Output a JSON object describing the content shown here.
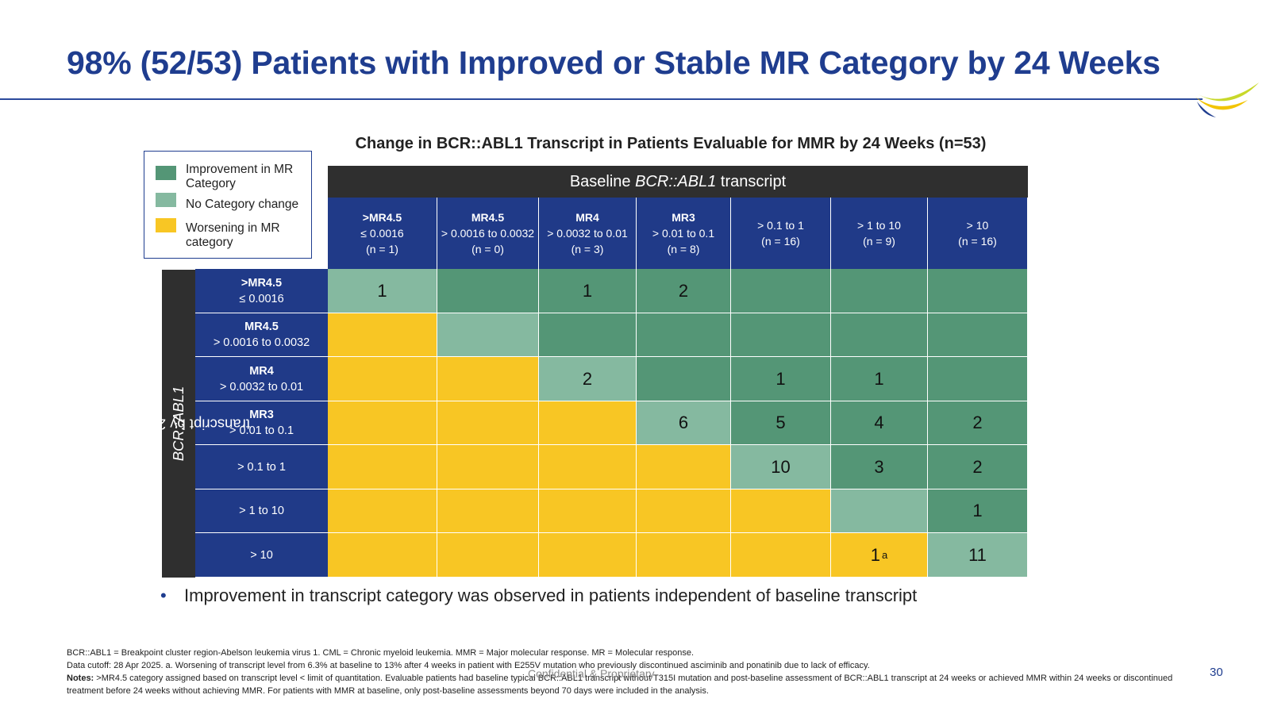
{
  "title": "98% (52/53) Patients with Improved or Stable MR Category by 24 Weeks",
  "table_title": "Change in BCR::ABL1 Transcript in Patients Evaluable for MMR by 24 Weeks (n=53)",
  "legend": [
    {
      "label": "Improvement in MR Category",
      "color": "#549676"
    },
    {
      "label": "No Category change",
      "color": "#85b9a0"
    },
    {
      "label": "Worsening in MR category",
      "color": "#f8c624"
    }
  ],
  "baseline_header_prefix": "Baseline ",
  "baseline_header_italic": "BCR::ABL1",
  "baseline_header_suffix": " transcript",
  "side_label_italic": "BCR::ABL1",
  "side_label_suffix": " transcript by 24-weeks",
  "columns": [
    {
      "line1": ">MR4.5",
      "line2": "≤ 0.0016",
      "line3": "(n = 1)",
      "bold": true
    },
    {
      "line1": "MR4.5",
      "line2": "> 0.0016 to 0.0032",
      "line3": "(n = 0)",
      "bold": true
    },
    {
      "line1": "MR4",
      "line2": "> 0.0032 to 0.01",
      "line3": "(n = 3)",
      "bold": true
    },
    {
      "line1": "MR3",
      "line2": "> 0.01 to 0.1",
      "line3": "(n = 8)",
      "bold": true
    },
    {
      "line1": "> 0.1 to 1",
      "line2": "(n = 16)",
      "line3": "",
      "bold": false
    },
    {
      "line1": "> 1 to 10",
      "line2": "(n = 9)",
      "line3": "",
      "bold": false
    },
    {
      "line1": "> 10",
      "line2": "(n = 16)",
      "line3": "",
      "bold": false
    }
  ],
  "rows": [
    {
      "line1": ">MR4.5",
      "line2": "≤ 0.0016",
      "bold": true
    },
    {
      "line1": "MR4.5",
      "line2": "> 0.0016 to 0.0032",
      "bold": true
    },
    {
      "line1": "MR4",
      "line2": "> 0.0032 to 0.01",
      "bold": true
    },
    {
      "line1": "MR3",
      "line2": "> 0.01 to 0.1",
      "bold": true
    },
    {
      "line1": "> 0.1 to 1",
      "line2": "",
      "bold": false
    },
    {
      "line1": "> 1 to 10",
      "line2": "",
      "bold": false
    },
    {
      "line1": "> 10",
      "line2": "",
      "bold": false
    }
  ],
  "cells": [
    [
      "1",
      "",
      "1",
      "2",
      "",
      "",
      ""
    ],
    [
      "",
      "",
      "",
      "",
      "",
      "",
      ""
    ],
    [
      "",
      "",
      "2",
      "",
      "1",
      "1",
      ""
    ],
    [
      "",
      "",
      "",
      "6",
      "5",
      "4",
      "2"
    ],
    [
      "",
      "",
      "",
      "",
      "10",
      "3",
      "2"
    ],
    [
      "",
      "",
      "",
      "",
      "",
      "",
      "1"
    ],
    [
      "",
      "",
      "",
      "",
      "",
      "1",
      "11"
    ]
  ],
  "cell_superscripts": {
    "6-5": "a"
  },
  "bullet": "Improvement in transcript category was observed in patients independent of baseline transcript",
  "footnotes": {
    "line1": "BCR::ABL1 = Breakpoint cluster region-Abelson leukemia virus 1. CML = Chronic myeloid leukemia. MMR = Major molecular response. MR = Molecular response.",
    "line2": "Data cutoff: 28 Apr 2025. a. Worsening of transcript level from 6.3% at baseline to 13% after 4 weeks in patient with E255V mutation who previously discontinued asciminib and ponatinib due to lack of efficacy.",
    "notes_label": "Notes:",
    "notes_text": " >MR4.5 category assigned based on transcript level < limit of quantitation. Evaluable patients had baseline typical BCR::ABL1 transcript without T315I mutation and post-baseline assessment of BCR::ABL1 transcript at 24 weeks or achieved MMR within 24 weeks or discontinued treatment before 24 weeks without achieving MMR. For patients with MMR at baseline, only post-baseline assessments beyond 70 days were included in the analysis."
  },
  "confidential": "Confidential & Proprietary",
  "page_number": "30"
}
